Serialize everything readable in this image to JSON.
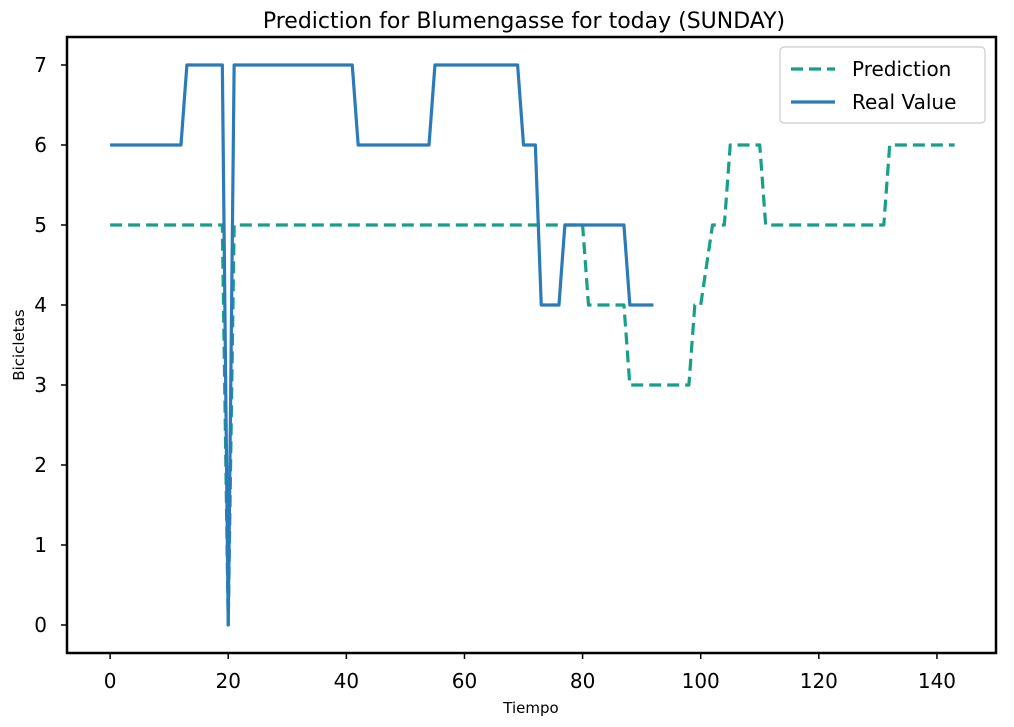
{
  "chart_data": {
    "type": "line",
    "title": "Prediction for Blumengasse for today (SUNDAY)",
    "xlabel": "Tiempo",
    "ylabel": "Bicicletas",
    "xlim": [
      -7.3,
      150
    ],
    "ylim": [
      -0.35,
      7.35
    ],
    "xticks": [
      0,
      20,
      40,
      60,
      80,
      100,
      120,
      140
    ],
    "yticks": [
      0,
      1,
      2,
      3,
      4,
      5,
      6,
      7
    ],
    "grid": false,
    "legend_position": "top-right",
    "series": [
      {
        "name": "Prediction",
        "style": "dashed",
        "color": "#17a085",
        "points": [
          [
            0,
            5
          ],
          [
            19,
            5
          ],
          [
            20,
            0
          ],
          [
            21,
            5
          ],
          [
            80,
            5
          ],
          [
            81,
            4
          ],
          [
            87,
            4
          ],
          [
            88,
            3
          ],
          [
            98,
            3
          ],
          [
            99,
            4
          ],
          [
            100,
            4
          ],
          [
            102,
            5
          ],
          [
            104,
            5
          ],
          [
            105,
            6
          ],
          [
            110,
            6
          ],
          [
            111,
            5
          ],
          [
            131,
            5
          ],
          [
            132,
            6
          ],
          [
            143,
            6
          ]
        ]
      },
      {
        "name": "Real Value",
        "style": "solid",
        "color": "#2b7bb9",
        "points": [
          [
            0,
            6
          ],
          [
            12,
            6
          ],
          [
            13,
            7
          ],
          [
            19,
            7
          ],
          [
            20,
            0
          ],
          [
            21,
            7
          ],
          [
            41,
            7
          ],
          [
            42,
            6
          ],
          [
            54,
            6
          ],
          [
            55,
            7
          ],
          [
            69,
            7
          ],
          [
            70,
            6
          ],
          [
            72,
            6
          ],
          [
            73,
            4
          ],
          [
            76,
            4
          ],
          [
            77,
            5
          ],
          [
            87,
            5
          ],
          [
            88,
            4
          ],
          [
            92,
            4
          ]
        ]
      }
    ]
  }
}
